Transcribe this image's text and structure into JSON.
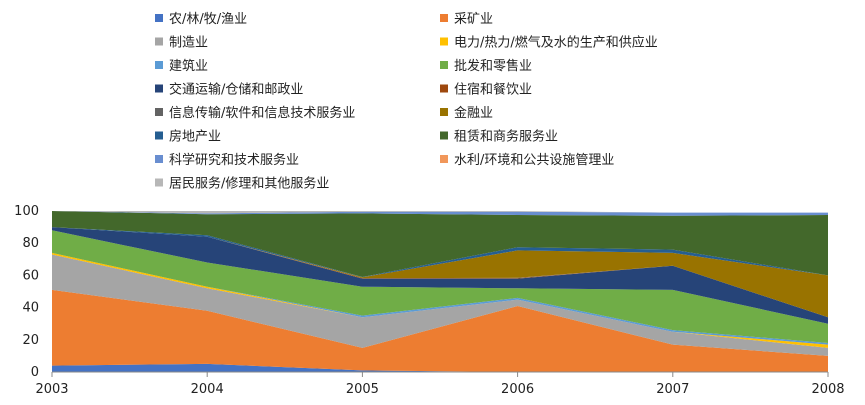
{
  "chart_data": {
    "type": "area",
    "stacked": true,
    "x": [
      "2003",
      "2004",
      "2005",
      "2006",
      "2007",
      "2008"
    ],
    "ylim": [
      0,
      100
    ],
    "yticks": [
      0,
      20,
      40,
      60,
      80,
      100
    ],
    "legend_position": "top",
    "series": [
      {
        "name": "农/林/牧/渔业",
        "color": "#4472C4",
        "values": [
          4,
          5,
          1,
          0,
          0,
          0
        ]
      },
      {
        "name": "采矿业",
        "color": "#ED7D31",
        "values": [
          47,
          33,
          14,
          41,
          17,
          10
        ]
      },
      {
        "name": "制造业",
        "color": "#A5A5A5",
        "values": [
          22,
          14,
          19,
          4,
          8,
          5
        ]
      },
      {
        "name": "电力/热力/燃气及水的生产和供应业",
        "color": "#FFC000",
        "values": [
          1,
          1,
          0,
          0,
          0,
          2
        ]
      },
      {
        "name": "建筑业",
        "color": "#5B9BD5",
        "values": [
          0,
          0,
          1,
          1,
          1,
          1
        ]
      },
      {
        "name": "批发和零售业",
        "color": "#70AD47",
        "values": [
          14,
          15,
          18,
          6,
          25,
          12
        ]
      },
      {
        "name": "交通运输/仓储和邮政业",
        "color": "#264478",
        "values": [
          2,
          16,
          5,
          6,
          15,
          4
        ]
      },
      {
        "name": "住宿和餐饮业",
        "color": "#9E480E",
        "values": [
          0,
          0,
          0.3,
          0.3,
          0,
          0
        ]
      },
      {
        "name": "信息传输/软件和信息技术服务业",
        "color": "#636363",
        "values": [
          0,
          0,
          0,
          0.2,
          0,
          0
        ]
      },
      {
        "name": "金融业",
        "color": "#997300",
        "values": [
          0,
          0,
          0.5,
          17,
          8,
          26
        ]
      },
      {
        "name": "房地产业",
        "color": "#255E91",
        "values": [
          0,
          1,
          0.2,
          2,
          2,
          0
        ]
      },
      {
        "name": "租赁和商务服务业",
        "color": "#43682B",
        "values": [
          10,
          13,
          39.5,
          20,
          21,
          37.5
        ]
      },
      {
        "name": "科学研究和技术服务业",
        "color": "#698ED0",
        "values": [
          0,
          0.5,
          1,
          2,
          2,
          1.5
        ]
      },
      {
        "name": "水利/环境和公共设施管理业",
        "color": "#F1975A",
        "values": [
          0,
          0,
          0,
          0,
          0,
          0
        ]
      },
      {
        "name": "居民服务/修理和其他服务业",
        "color": "#B7B7B7",
        "values": [
          0,
          1.5,
          0.5,
          0.5,
          0,
          0
        ]
      }
    ]
  }
}
